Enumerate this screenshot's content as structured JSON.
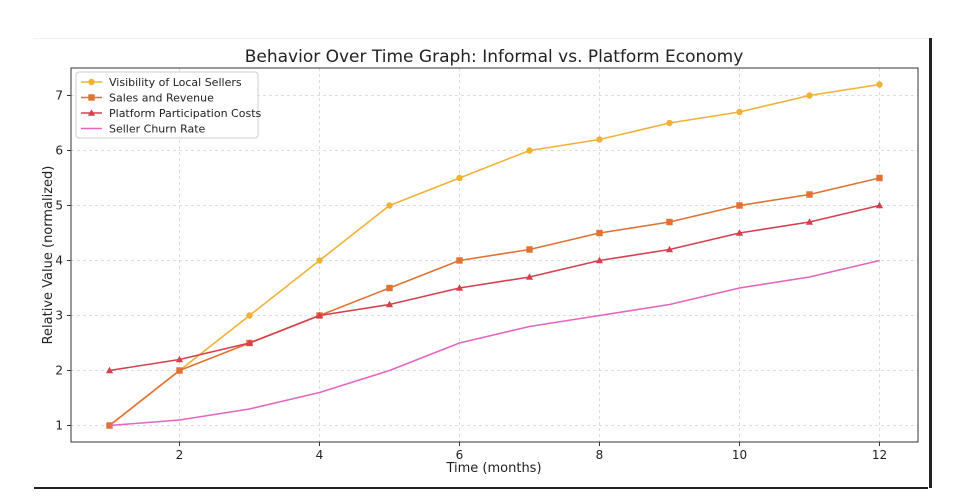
{
  "chart_data": {
    "type": "line",
    "title": "Behavior Over Time Graph: Informal vs. Platform Economy",
    "xlabel": "Time (months)",
    "ylabel": "Relative Value (normalized)",
    "x": [
      1,
      2,
      3,
      4,
      5,
      6,
      7,
      8,
      9,
      10,
      11,
      12
    ],
    "xticks": [
      2,
      4,
      6,
      8,
      10,
      12
    ],
    "yticks": [
      1,
      2,
      3,
      4,
      5,
      6,
      7
    ],
    "xlim": [
      0.45,
      12.55
    ],
    "ylim": [
      0.7,
      7.5
    ],
    "grid": true,
    "legend_position": "top-left",
    "series": [
      {
        "name": "Visibility of Local Sellers",
        "color": "#F0B236",
        "marker": "circle",
        "values": [
          1,
          2,
          3,
          4,
          5,
          5.5,
          6,
          6.2,
          6.5,
          6.7,
          7,
          7.2
        ]
      },
      {
        "name": "Sales and Revenue",
        "color": "#E07234",
        "marker": "square",
        "values": [
          1,
          2,
          2.5,
          3,
          3.5,
          4,
          4.2,
          4.5,
          4.7,
          5,
          5.2,
          5.5
        ]
      },
      {
        "name": "Platform Participation Costs",
        "color": "#D6404E",
        "marker": "triangle",
        "values": [
          2,
          2.2,
          2.5,
          3,
          3.2,
          3.5,
          3.7,
          4,
          4.2,
          4.5,
          4.7,
          5
        ]
      },
      {
        "name": "Seller Churn Rate",
        "color": "#E565C2",
        "marker": "none",
        "values": [
          1,
          1.1,
          1.3,
          1.6,
          2,
          2.5,
          2.8,
          3,
          3.2,
          3.5,
          3.7,
          4
        ]
      }
    ]
  }
}
